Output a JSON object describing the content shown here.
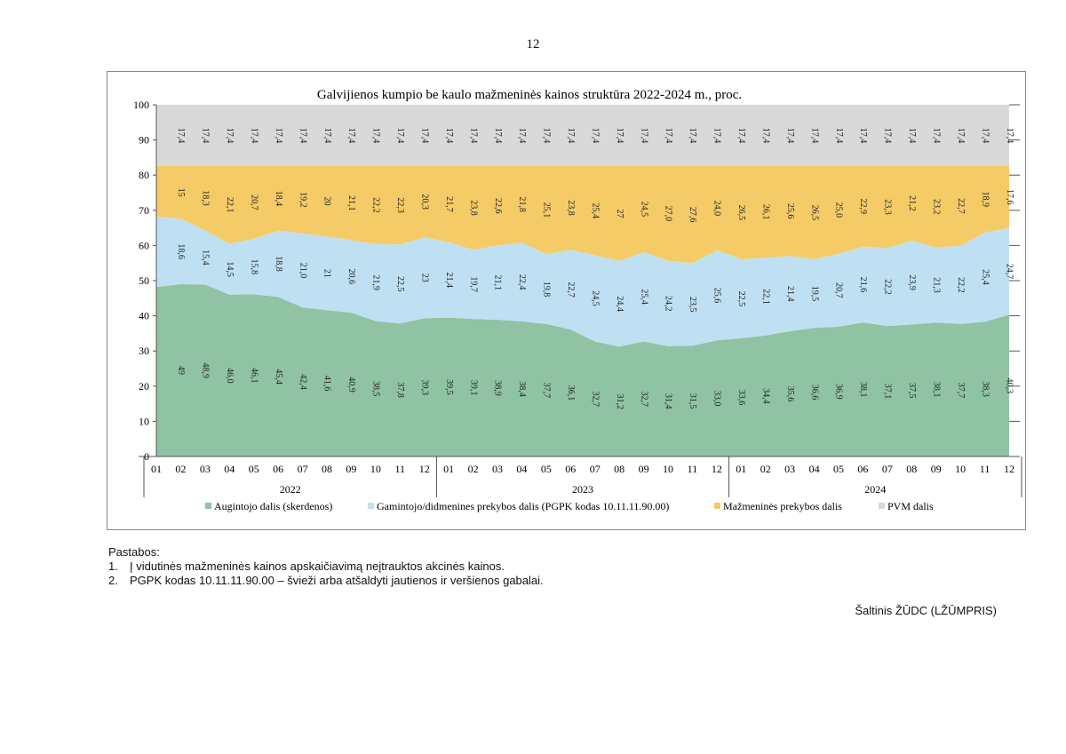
{
  "page_number": "12",
  "chart_data": {
    "type": "area",
    "stacked": true,
    "title": "Galvijienos kumpio be kaulo mažmeninės kainos struktūra 2022-2024 m., proc.",
    "ylim": [
      0,
      100
    ],
    "yticks": [
      "0",
      "10",
      "20",
      "30",
      "40",
      "50",
      "60",
      "70",
      "80",
      "90",
      "100"
    ],
    "categories": [
      "01",
      "02",
      "03",
      "04",
      "05",
      "06",
      "07",
      "08",
      "09",
      "10",
      "11",
      "12",
      "01",
      "02",
      "03",
      "04",
      "05",
      "06",
      "07",
      "08",
      "09",
      "10",
      "11",
      "12",
      "01",
      "02",
      "03",
      "04",
      "05",
      "06",
      "07",
      "08",
      "09",
      "10",
      "11",
      "12"
    ],
    "years": [
      "2022",
      "2023",
      "2024"
    ],
    "legend_position": "bottom",
    "series": [
      {
        "name": "Augintojo dalis (skerdenos)",
        "color": "#8fc3a3",
        "values": [
          48.2,
          49.0,
          48.9,
          46.0,
          46.1,
          45.4,
          42.4,
          41.6,
          40.9,
          38.5,
          37.8,
          39.3,
          39.5,
          39.1,
          38.9,
          38.4,
          37.7,
          36.1,
          32.7,
          31.2,
          32.7,
          31.4,
          31.5,
          33.0,
          33.6,
          34.4,
          35.6,
          36.6,
          36.9,
          38.1,
          37.1,
          37.5,
          38.1,
          37.7,
          38.3,
          40.3
        ],
        "labels": [
          "",
          "49",
          "48,9",
          "46,0",
          "46,1",
          "45,4",
          "42,4",
          "41,6",
          "40,9",
          "38,5",
          "37,8",
          "39,3",
          "39,5",
          "39,1",
          "38,9",
          "38,4",
          "37,7",
          "36,1",
          "32,7",
          "31,2",
          "32,7",
          "31,4",
          "31,5",
          "33,0",
          "33,6",
          "34,4",
          "35,6",
          "36,6",
          "36,9",
          "38,1",
          "37,1",
          "37,5",
          "38,1",
          "37,7",
          "38,3",
          "40,3"
        ]
      },
      {
        "name": "Gamintojo/didmenines prekybos dalis (PGPK kodas 10.11.11.90.00)",
        "color": "#bfe0f2",
        "values": [
          20.0,
          18.6,
          15.4,
          14.5,
          15.8,
          18.8,
          21.0,
          21.0,
          20.6,
          21.9,
          22.5,
          23.0,
          21.4,
          19.7,
          21.1,
          22.4,
          19.8,
          22.7,
          24.5,
          24.4,
          25.4,
          24.2,
          23.5,
          25.6,
          22.5,
          22.1,
          21.4,
          19.5,
          20.7,
          21.6,
          22.2,
          23.9,
          21.3,
          22.2,
          25.4,
          24.7
        ],
        "labels": [
          "",
          "18,6",
          "15,4",
          "14,5",
          "15,8",
          "18,8",
          "21,0",
          "21",
          "20,6",
          "21,9",
          "22,5",
          "23",
          "21,4",
          "19,7",
          "21,1",
          "22,4",
          "19,8",
          "22,7",
          "24,5",
          "24,4",
          "25,4",
          "24,2",
          "23,5",
          "25,6",
          "22,5",
          "22,1",
          "21,4",
          "19,5",
          "20,7",
          "21,6",
          "22,2",
          "23,9",
          "21,3",
          "22,2",
          "25,4",
          "24,7"
        ]
      },
      {
        "name": "Mažmeninės prekybos dalis",
        "color": "#f5cb68",
        "values": [
          14.4,
          15.0,
          18.3,
          22.1,
          20.7,
          18.4,
          19.2,
          20.0,
          21.1,
          22.2,
          22.3,
          20.3,
          21.7,
          23.8,
          22.6,
          21.8,
          25.1,
          23.8,
          25.4,
          27.0,
          24.5,
          27.0,
          27.6,
          24.0,
          26.5,
          26.1,
          25.6,
          26.5,
          25.0,
          22.9,
          23.3,
          21.2,
          23.2,
          22.7,
          18.9,
          17.6
        ],
        "labels": [
          "",
          "15",
          "18,3",
          "22,1",
          "20,7",
          "18,4",
          "19,2",
          "20",
          "21,1",
          "22,2",
          "22,3",
          "20,3",
          "21,7",
          "23,8",
          "22,6",
          "21,8",
          "25,1",
          "23,8",
          "25,4",
          "27",
          "24,5",
          "27,0",
          "27,6",
          "24,0",
          "26,5",
          "26,1",
          "25,6",
          "26,5",
          "25,0",
          "22,9",
          "23,3",
          "21,2",
          "23,2",
          "22,7",
          "18,9",
          "17,6"
        ]
      },
      {
        "name": "PVM dalis",
        "color": "#d9d9d9",
        "values": [
          17.4,
          17.4,
          17.4,
          17.4,
          17.4,
          17.4,
          17.4,
          17.4,
          17.4,
          17.4,
          17.4,
          17.4,
          17.4,
          17.4,
          17.4,
          17.4,
          17.4,
          17.4,
          17.4,
          17.4,
          17.4,
          17.4,
          17.4,
          17.4,
          17.4,
          17.4,
          17.4,
          17.4,
          17.4,
          17.4,
          17.4,
          17.4,
          17.4,
          17.4,
          17.4,
          17.4
        ],
        "labels": [
          "",
          "17,4",
          "17,4",
          "17,4",
          "17,4",
          "17,4",
          "17,4",
          "17,4",
          "17,4",
          "17,4",
          "17,4",
          "17,4",
          "17,4",
          "17,4",
          "17,4",
          "17,4",
          "17,4",
          "17,4",
          "17,4",
          "17,4",
          "17,4",
          "17,4",
          "17,4",
          "17,4",
          "17,4",
          "17,4",
          "17,4",
          "17,4",
          "17,4",
          "17,4",
          "17,4",
          "17,4",
          "17,4",
          "17,4",
          "17,4",
          "17,4"
        ]
      }
    ]
  },
  "notes": {
    "heading": "Pastabos:",
    "items": [
      {
        "num": "1.",
        "text": "Į vidutinės mažmeninės kainos apskaičiavimą neįtrauktos akcinės kainos."
      },
      {
        "num": "2.",
        "text": "PGPK kodas 10.11.11.90.00 – švieži arba atšaldyti jautienos ir veršienos gabalai."
      }
    ]
  },
  "source": "Šaltinis ŽŪDC (LŽŪMPRIS)"
}
